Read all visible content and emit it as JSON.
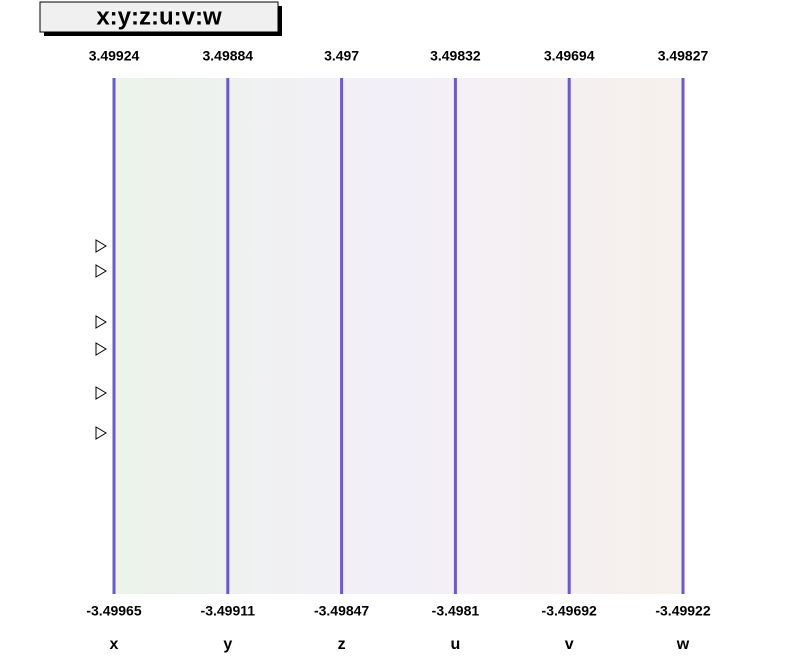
{
  "chart_data": {
    "type": "parallel",
    "title": "x:y:z:u:v:w",
    "axes": [
      {
        "name": "x",
        "max": 3.49924,
        "min": -3.49965
      },
      {
        "name": "y",
        "max": 3.49884,
        "min": -3.49911
      },
      {
        "name": "z",
        "max": 3.497,
        "min": -3.49847
      },
      {
        "name": "u",
        "max": 3.49832,
        "min": -3.4981
      },
      {
        "name": "v",
        "max": 3.49694,
        "min": -3.49692
      },
      {
        "name": "w",
        "max": 3.49827,
        "min": -3.49922
      }
    ],
    "axis_color": "#6a5acd"
  }
}
